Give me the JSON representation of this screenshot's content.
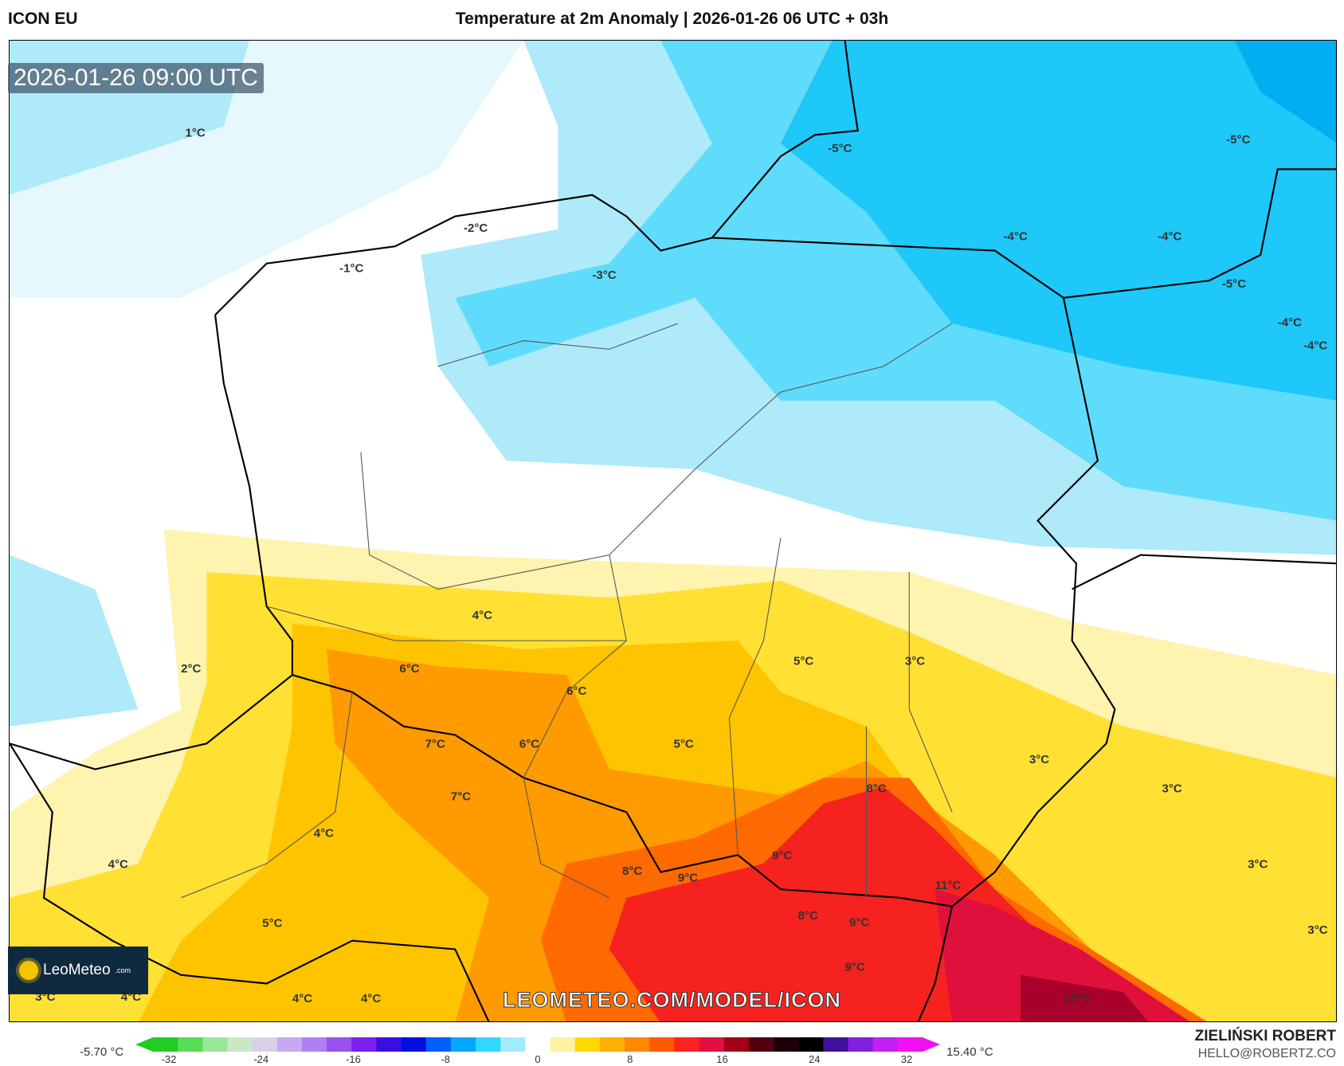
{
  "header": {
    "model": "ICON EU",
    "title": "Temperature at 2m Anomaly | 2026-01-26 06 UTC + 03h"
  },
  "map": {
    "valid_time": "2026-01-26 09:00 UTC",
    "watermark": "LEOMETEO.COM/MODEL/ICON",
    "labels": [
      "1°C",
      "-2°C",
      "-1°C",
      "-3°C",
      "-5°C",
      "-5°C",
      "-4°C",
      "-4°C",
      "-5°C",
      "-4°C",
      "-4°C",
      "4°C",
      "6°C",
      "2°C",
      "6°C",
      "5°C",
      "3°C",
      "7°C",
      "6°C",
      "5°C",
      "7°C",
      "3°C",
      "8°C",
      "3°C",
      "4°C",
      "9°C",
      "4°C",
      "8°C",
      "9°C",
      "11°C",
      "3°C",
      "5°C",
      "8°C",
      "9°C",
      "3°C",
      "9°C",
      "3°C",
      "4°C",
      "4°C",
      "4°C",
      "15°C"
    ]
  },
  "logo": {
    "brand": "LeoMeteo",
    "suffix": ".com"
  },
  "colorbar": {
    "min_label": "-5.70 °C",
    "max_label": "15.40 °C",
    "ticks": [
      "-32",
      "-24",
      "-16",
      "-8",
      "0",
      "8",
      "16",
      "24",
      "32"
    ],
    "colors": [
      "#22cc22",
      "#55dd55",
      "#99e699",
      "#c8e8c8",
      "#d8d0e8",
      "#c8a8f0",
      "#b080f0",
      "#9a50ee",
      "#7a20ee",
      "#3a10e0",
      "#0010e0",
      "#0060ff",
      "#00a8ff",
      "#30d8ff",
      "#a0ecff",
      "#ffffff",
      "#fff2a0",
      "#ffd800",
      "#ffb000",
      "#ff8800",
      "#ff5a00",
      "#ff2020",
      "#e01040",
      "#a00018",
      "#500010",
      "#200008",
      "#000000",
      "#4010a0",
      "#8020e0",
      "#c020f0",
      "#f010f0"
    ]
  },
  "author": {
    "name": "ZIELIŃSKI ROBERT",
    "email": "HELLO@ROBERTZ.CO"
  }
}
